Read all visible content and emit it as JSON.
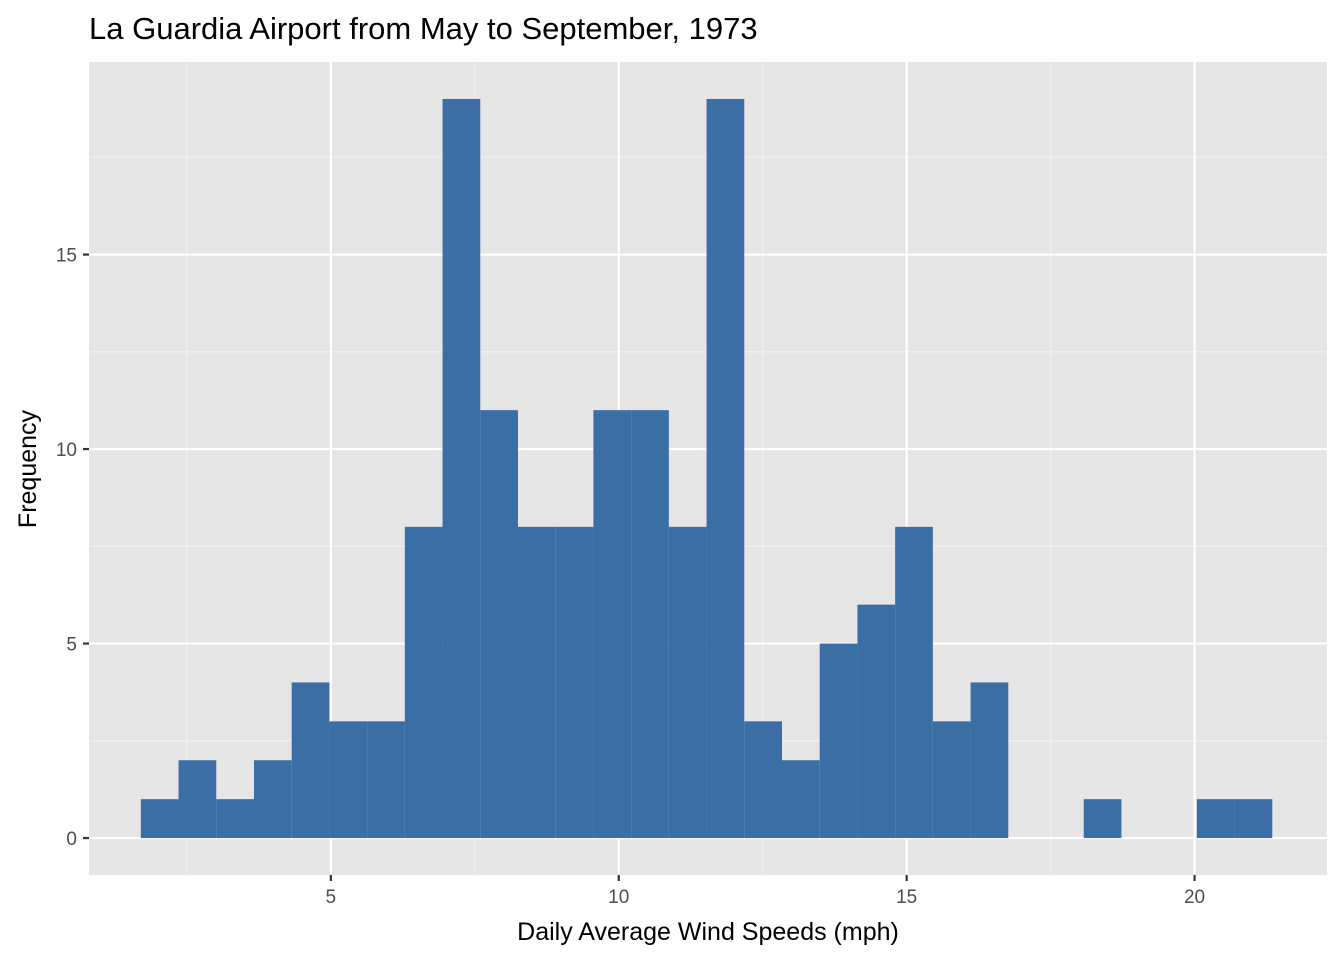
{
  "chart_data": {
    "type": "bar",
    "subtype": "histogram",
    "title": "La Guardia Airport from May to September, 1973",
    "xlabel": "Daily Average Wind Speeds (mph)",
    "ylabel": "Frequency",
    "xlim": [
      0.8,
      22.3
    ],
    "ylim": [
      -0.95,
      19.95
    ],
    "xticks": [
      5,
      10,
      15,
      20
    ],
    "yticks": [
      0,
      5,
      10,
      15
    ],
    "grid": true,
    "legend": "none",
    "bar_color": "#3A6EA5",
    "panel_color": "#E5E5E5",
    "bin_width": 0.655,
    "bins": [
      {
        "x_start": 1.7,
        "count": 1
      },
      {
        "x_start": 2.355,
        "count": 2
      },
      {
        "x_start": 3.01,
        "count": 1
      },
      {
        "x_start": 3.665,
        "count": 2
      },
      {
        "x_start": 4.32,
        "count": 4
      },
      {
        "x_start": 4.975,
        "count": 3
      },
      {
        "x_start": 5.63,
        "count": 3
      },
      {
        "x_start": 6.285,
        "count": 8
      },
      {
        "x_start": 6.94,
        "count": 19
      },
      {
        "x_start": 7.595,
        "count": 11
      },
      {
        "x_start": 8.25,
        "count": 8
      },
      {
        "x_start": 8.905,
        "count": 8
      },
      {
        "x_start": 9.56,
        "count": 11
      },
      {
        "x_start": 10.215,
        "count": 11
      },
      {
        "x_start": 10.87,
        "count": 8
      },
      {
        "x_start": 11.525,
        "count": 19
      },
      {
        "x_start": 12.18,
        "count": 3
      },
      {
        "x_start": 12.835,
        "count": 2
      },
      {
        "x_start": 13.49,
        "count": 5
      },
      {
        "x_start": 14.145,
        "count": 6
      },
      {
        "x_start": 14.8,
        "count": 8
      },
      {
        "x_start": 15.455,
        "count": 3
      },
      {
        "x_start": 16.11,
        "count": 4
      },
      {
        "x_start": 16.765,
        "count": 0
      },
      {
        "x_start": 17.42,
        "count": 0
      },
      {
        "x_start": 18.075,
        "count": 1
      },
      {
        "x_start": 18.73,
        "count": 0
      },
      {
        "x_start": 19.385,
        "count": 0
      },
      {
        "x_start": 20.04,
        "count": 1
      },
      {
        "x_start": 20.695,
        "count": 1
      }
    ]
  }
}
